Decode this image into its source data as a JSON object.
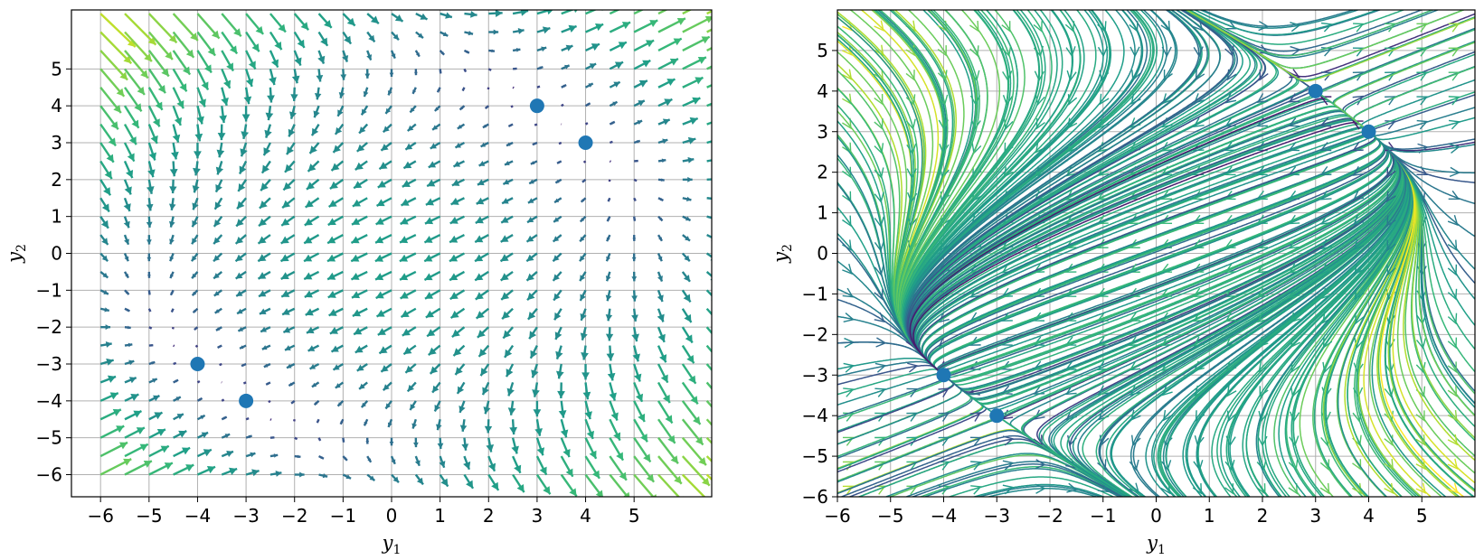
{
  "chart_data": [
    {
      "type": "quiver",
      "title": "",
      "xlabel": "y",
      "xlabel_sub": "1",
      "ylabel": "y",
      "ylabel_sub": "2",
      "xlim": [
        -6.6,
        6.6
      ],
      "ylim": [
        -6.6,
        6.6
      ],
      "xticks": [
        -6,
        -5,
        -4,
        -3,
        -2,
        -1,
        0,
        1,
        2,
        3,
        4,
        5
      ],
      "yticks": [
        -6,
        -5,
        -4,
        -3,
        -2,
        -1,
        0,
        1,
        2,
        3,
        4,
        5
      ],
      "grid": true,
      "colormap": "viridis",
      "marker_color": "#1f77b4",
      "equilibrium_points": [
        {
          "x": 3,
          "y": 4
        },
        {
          "x": 4,
          "y": 3
        },
        {
          "x": -4,
          "y": -3
        },
        {
          "x": -3,
          "y": -4
        }
      ]
    },
    {
      "type": "streamplot",
      "title": "",
      "xlabel": "y",
      "xlabel_sub": "1",
      "ylabel": "y",
      "ylabel_sub": "2",
      "xlim": [
        -6,
        6
      ],
      "ylim": [
        -6,
        6
      ],
      "xticks": [
        -6,
        -5,
        -4,
        -3,
        -2,
        -1,
        0,
        1,
        2,
        3,
        4,
        5
      ],
      "yticks": [
        -6,
        -5,
        -4,
        -3,
        -2,
        -1,
        0,
        1,
        2,
        3,
        4,
        5
      ],
      "grid": true,
      "colormap": "viridis",
      "marker_color": "#1f77b4",
      "equilibrium_points": [
        {
          "x": 3,
          "y": 4
        },
        {
          "x": 4,
          "y": 3
        },
        {
          "x": -4,
          "y": -3
        },
        {
          "x": -3,
          "y": -4
        }
      ]
    }
  ]
}
